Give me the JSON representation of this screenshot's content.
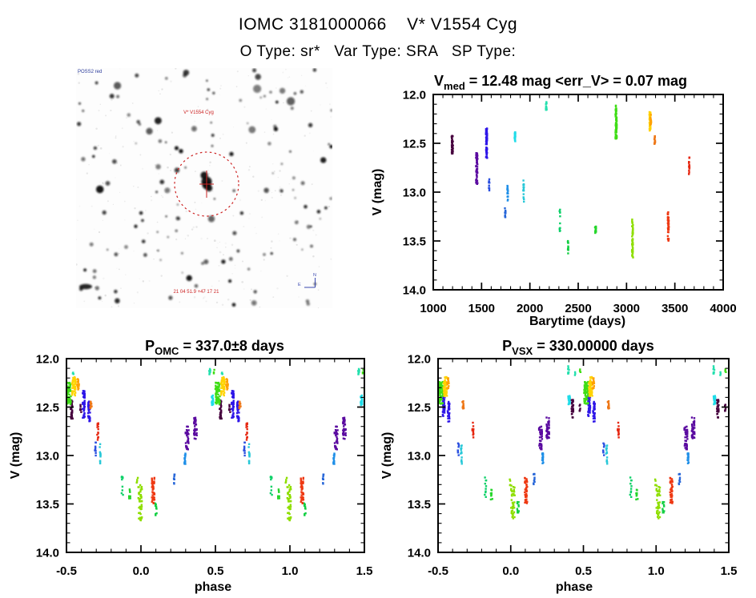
{
  "header": {
    "title": "IOMC 3181000066    V* V1554 Cyg",
    "subtitle": "O Type: sr*   Var Type: SRA   SP Type:"
  },
  "finder_chart": {
    "survey_label": "POSS2 red",
    "target_label": "V* V1554 Cyg",
    "coords_label": "21 04 51.9 +47 17 21",
    "compass": {
      "north": "N",
      "east": "E"
    },
    "marker_color": "#cc2222"
  },
  "palette": {
    "maroon": "#46003e",
    "purple": "#5a0aa0",
    "indigo": "#2e16e8",
    "blue": "#2b50e0",
    "blue2": "#2565d8",
    "lblue": "#1f8fe8",
    "cyan": "#20dce8",
    "cyan2": "#28c8d8",
    "turq": "#25e0ae",
    "teal_green": "#0cd068",
    "green2": "#12cf42",
    "green3": "#25d62b",
    "green": "#3fdd16",
    "ygreen": "#8ede00",
    "yellow": "#ffd300",
    "orange": "#ffa000",
    "orange2": "#ee7717",
    "red": "#ee3913",
    "red2": "#e62711"
  },
  "chart_data": [
    {
      "type": "scatter",
      "id": "barytime",
      "title": "V_med = 12.48 mag <err_V> = 0.07 mag",
      "title_parts": {
        "pre": "V",
        "sub": "med",
        "post": " = 12.48 mag <err_V> = 0.07 mag"
      },
      "xlabel": "Barytime (days)",
      "ylabel": "V (mag)",
      "xlim": [
        1000,
        4000
      ],
      "ylim": [
        12.0,
        14.0
      ],
      "y_axis_inverted_magnitudes": true,
      "grid": false,
      "xticks": [
        1000,
        1500,
        2000,
        2500,
        3000,
        3500,
        4000
      ],
      "xtick_labels": [
        "1000",
        "1500",
        "2000",
        "2500",
        "3000",
        "3500",
        "4000"
      ],
      "yticks": [
        12.0,
        12.5,
        13.0,
        13.5,
        14.0
      ],
      "ytick_labels": [
        "12.0",
        "12.5",
        "13.0",
        "13.5",
        "14.0"
      ],
      "x_minor_step": 100,
      "y_minor_step": 0.1,
      "clusters": [
        {
          "id": "t1197",
          "x": 1197,
          "v": [
            12.42,
            12.61
          ],
          "color": "maroon",
          "n": 38,
          "w": 14
        },
        {
          "id": "t1450",
          "x": 1450,
          "v": [
            12.6,
            12.92
          ],
          "color": "purple",
          "n": 55,
          "w": 16
        },
        {
          "id": "t1552",
          "x": 1552,
          "v": [
            12.33,
            12.65
          ],
          "color": "indigo",
          "n": 65,
          "w": 12
        },
        {
          "id": "t1578",
          "x": 1578,
          "v": [
            12.86,
            13.0
          ],
          "color": "blue",
          "n": 10,
          "w": 8
        },
        {
          "id": "t1745",
          "x": 1745,
          "v": [
            13.15,
            13.27
          ],
          "color": "blue2",
          "n": 9,
          "w": 8
        },
        {
          "id": "t1770",
          "x": 1770,
          "v": [
            12.93,
            13.09
          ],
          "color": "lblue",
          "n": 20,
          "w": 8
        },
        {
          "id": "t1845",
          "x": 1845,
          "v": [
            12.38,
            12.48
          ],
          "color": "cyan",
          "n": 26,
          "w": 10
        },
        {
          "id": "t1935",
          "x": 1935,
          "v": [
            12.86,
            13.1
          ],
          "color": "cyan2",
          "n": 15,
          "w": 7
        },
        {
          "id": "t2170",
          "x": 2170,
          "v": [
            12.07,
            12.17
          ],
          "color": "turq",
          "n": 15,
          "w": 10
        },
        {
          "id": "t2310",
          "x": 2310,
          "v": [
            13.17,
            13.4
          ],
          "color": "teal_green",
          "n": 11,
          "w": 7
        },
        {
          "id": "t2395",
          "x": 2395,
          "v": [
            13.5,
            13.63
          ],
          "color": "green2",
          "n": 11,
          "w": 7
        },
        {
          "id": "t2680",
          "x": 2680,
          "v": [
            13.35,
            13.45
          ],
          "color": "green3",
          "n": 15,
          "w": 12
        },
        {
          "id": "t2892",
          "x": 2892,
          "v": [
            12.14,
            12.46
          ],
          "color": "green",
          "n": 70,
          "w": 14
        },
        {
          "id": "t2892-out",
          "x": 2892,
          "v": [
            12.11,
            12.17
          ],
          "color": "green",
          "n": 4,
          "w": 8
        },
        {
          "id": "t3062",
          "x": 3062,
          "v": [
            13.26,
            13.68
          ],
          "color": "ygreen",
          "n": 46,
          "w": 12
        },
        {
          "id": "t3243",
          "x": 3243,
          "v": [
            12.18,
            12.38
          ],
          "color": "yellow",
          "n": 50,
          "w": 12
        },
        {
          "id": "t3250",
          "x": 3250,
          "v": [
            12.2,
            12.31
          ],
          "color": "orange",
          "n": 16,
          "w": 8
        },
        {
          "id": "t3292",
          "x": 3292,
          "v": [
            12.42,
            12.51
          ],
          "color": "orange2",
          "n": 16,
          "w": 7
        },
        {
          "id": "t3432",
          "x": 3432,
          "v": [
            13.2,
            13.5
          ],
          "color": "red",
          "n": 46,
          "w": 10
        },
        {
          "id": "t3648",
          "x": 3648,
          "v": [
            12.64,
            12.83
          ],
          "color": "red2",
          "n": 16,
          "w": 7
        }
      ]
    },
    {
      "type": "scatter",
      "id": "phase-omc",
      "phase_folded": true,
      "period": "337.0±8 days",
      "title": "P_OMC = 337.0±8 days",
      "title_parts": {
        "pre": "P",
        "sub": "OMC",
        "post": " = 337.0±8 days"
      },
      "xlabel": "phase",
      "ylabel": "V (mag)",
      "xlim": [
        -0.5,
        1.5
      ],
      "ylim": [
        12.0,
        14.0
      ],
      "y_axis_inverted_magnitudes": true,
      "grid": false,
      "xticks": [
        -0.5,
        0.0,
        0.5,
        1.0,
        1.5
      ],
      "xtick_labels": [
        "-0.5",
        "0.0",
        "0.5",
        "1.0",
        "1.5"
      ],
      "yticks": [
        12.0,
        12.5,
        13.0,
        13.5,
        14.0
      ],
      "ytick_labels": [
        "12.0",
        "12.5",
        "13.0",
        "13.5",
        "14.0"
      ],
      "x_minor_step": 0.1,
      "y_minor_step": 0.1,
      "clusters": [
        {
          "id": "maroon-line",
          "x": 0.535,
          "v": [
            12.42,
            12.62
          ],
          "color": "maroon",
          "n": 30,
          "w": 0.013
        },
        {
          "id": "maroon-dash",
          "x": 0.595,
          "v": [
            12.47,
            12.56
          ],
          "color": "maroon",
          "n": 6,
          "w": 0.008
        },
        {
          "id": "purple-a",
          "x": 0.31,
          "v": [
            12.7,
            12.94
          ],
          "color": "purple",
          "n": 42,
          "w": 0.022
        },
        {
          "id": "purple-b",
          "x": 0.365,
          "v": [
            12.6,
            12.83
          ],
          "color": "purple",
          "n": 36,
          "w": 0.02
        },
        {
          "id": "indigo-a",
          "x": 0.615,
          "v": [
            12.33,
            12.61
          ],
          "color": "indigo",
          "n": 45,
          "w": 0.016
        },
        {
          "id": "indigo-b",
          "x": 0.652,
          "v": [
            12.44,
            12.65
          ],
          "color": "indigo",
          "n": 32,
          "w": 0.013
        },
        {
          "id": "blue-sm",
          "x": 0.695,
          "v": [
            12.86,
            13.0
          ],
          "color": "blue",
          "n": 9,
          "w": 0.01
        },
        {
          "id": "blue-dots",
          "x": 0.225,
          "v": [
            13.19,
            13.31
          ],
          "color": "blue2",
          "n": 9,
          "w": 0.01
        },
        {
          "id": "lblue-streak",
          "x": 0.295,
          "v": [
            12.95,
            13.09
          ],
          "color": "lblue",
          "n": 16,
          "w": 0.008
        },
        {
          "id": "cyan-block",
          "x": 0.48,
          "v": [
            12.38,
            12.48
          ],
          "color": "cyan",
          "n": 26,
          "w": 0.013
        },
        {
          "id": "cyan-dots",
          "x": 0.725,
          "v": [
            12.88,
            13.1
          ],
          "color": "cyan2",
          "n": 13,
          "w": 0.008
        },
        {
          "id": "turq-dots",
          "x": 0.462,
          "v": [
            12.07,
            12.17
          ],
          "color": "turq",
          "n": 9,
          "w": 0.008
        },
        {
          "id": "turq-stray",
          "x": 0.545,
          "v": [
            12.13,
            12.18
          ],
          "color": "turq",
          "n": 3,
          "w": 0.006
        },
        {
          "id": "tealgreen-dots",
          "x": 0.875,
          "v": [
            13.21,
            13.44
          ],
          "color": "teal_green",
          "n": 10,
          "w": 0.01
        },
        {
          "id": "green-dots",
          "x": 0.1,
          "v": [
            13.48,
            13.63
          ],
          "color": "green2",
          "n": 10,
          "w": 0.012
        },
        {
          "id": "green-block",
          "x": 0.924,
          "v": [
            13.35,
            13.46
          ],
          "color": "green3",
          "n": 9,
          "w": 0.012
        },
        {
          "id": "green-big",
          "x": 0.515,
          "v": [
            12.24,
            12.47
          ],
          "color": "green",
          "n": 65,
          "w": 0.03
        },
        {
          "id": "green-outlier",
          "x": 0.492,
          "v": [
            12.11,
            12.17
          ],
          "color": "green",
          "n": 3,
          "w": 0.008
        },
        {
          "id": "ygreen-big",
          "x": 0.995,
          "v": [
            13.3,
            13.67
          ],
          "color": "ygreen",
          "n": 42,
          "w": 0.026
        },
        {
          "id": "ygreen-tail",
          "x": 0.975,
          "v": [
            13.22,
            13.32
          ],
          "color": "ygreen",
          "n": 4,
          "w": 0.008
        },
        {
          "id": "yellow-blob",
          "x": 0.55,
          "v": [
            12.19,
            12.39
          ],
          "color": "yellow",
          "n": 48,
          "w": 0.024
        },
        {
          "id": "orange-blob",
          "x": 0.578,
          "v": [
            12.2,
            12.32
          ],
          "color": "orange",
          "n": 16,
          "w": 0.012
        },
        {
          "id": "orange-block",
          "x": 0.665,
          "v": [
            12.43,
            12.52
          ],
          "color": "orange2",
          "n": 13,
          "w": 0.009
        },
        {
          "id": "red-big",
          "x": 0.082,
          "v": [
            13.23,
            13.5
          ],
          "color": "red",
          "n": 42,
          "w": 0.018
        },
        {
          "id": "red-thin",
          "x": 0.71,
          "v": [
            12.66,
            12.84
          ],
          "color": "red2",
          "n": 13,
          "w": 0.008
        }
      ]
    },
    {
      "type": "scatter",
      "id": "phase-vsx",
      "phase_folded": true,
      "period": "330.00000 days",
      "title": "P_VSX = 330.00000 days",
      "title_parts": {
        "pre": "P",
        "sub": "VSX",
        "post": " = 330.00000 days"
      },
      "xlabel": "phase",
      "ylabel": "V (mag)",
      "xlim": [
        -0.5,
        1.5
      ],
      "ylim": [
        12.0,
        14.0
      ],
      "y_axis_inverted_magnitudes": true,
      "grid": false,
      "xticks": [
        -0.5,
        0.0,
        0.5,
        1.0,
        1.5
      ],
      "xtick_labels": [
        "-0.5",
        "0.0",
        "0.5",
        "1.0",
        "1.5"
      ],
      "yticks": [
        12.0,
        12.5,
        13.0,
        13.5,
        14.0
      ],
      "ytick_labels": [
        "12.0",
        "12.5",
        "13.0",
        "13.5",
        "14.0"
      ],
      "x_minor_step": 0.1,
      "y_minor_step": 0.1,
      "clusters": [
        {
          "id": "maroon-line",
          "x": 0.425,
          "v": [
            12.42,
            12.62
          ],
          "color": "maroon",
          "n": 30,
          "w": 0.013
        },
        {
          "id": "maroon-dash",
          "x": 0.475,
          "v": [
            12.47,
            12.56
          ],
          "color": "maroon",
          "n": 6,
          "w": 0.008
        },
        {
          "id": "purple-a",
          "x": 0.205,
          "v": [
            12.7,
            12.94
          ],
          "color": "purple",
          "n": 42,
          "w": 0.022
        },
        {
          "id": "purple-b",
          "x": 0.255,
          "v": [
            12.6,
            12.83
          ],
          "color": "purple",
          "n": 36,
          "w": 0.02
        },
        {
          "id": "indigo-a",
          "x": 0.54,
          "v": [
            12.33,
            12.61
          ],
          "color": "indigo",
          "n": 45,
          "w": 0.016
        },
        {
          "id": "indigo-b",
          "x": 0.572,
          "v": [
            12.44,
            12.65
          ],
          "color": "indigo",
          "n": 32,
          "w": 0.013
        },
        {
          "id": "blue-sm",
          "x": 0.64,
          "v": [
            12.86,
            13.0
          ],
          "color": "blue",
          "n": 9,
          "w": 0.01
        },
        {
          "id": "blue-dots",
          "x": 0.16,
          "v": [
            13.19,
            13.31
          ],
          "color": "blue2",
          "n": 9,
          "w": 0.01
        },
        {
          "id": "lblue-streak",
          "x": 0.22,
          "v": [
            12.95,
            13.09
          ],
          "color": "lblue",
          "n": 16,
          "w": 0.008
        },
        {
          "id": "cyan-block",
          "x": 0.402,
          "v": [
            12.38,
            12.48
          ],
          "color": "cyan",
          "n": 26,
          "w": 0.013
        },
        {
          "id": "cyan-dots",
          "x": 0.66,
          "v": [
            12.88,
            13.1
          ],
          "color": "cyan2",
          "n": 13,
          "w": 0.008
        },
        {
          "id": "turq-dots",
          "x": 0.398,
          "v": [
            12.07,
            12.17
          ],
          "color": "turq",
          "n": 9,
          "w": 0.008
        },
        {
          "id": "turq-stray",
          "x": 0.443,
          "v": [
            12.13,
            12.18
          ],
          "color": "turq",
          "n": 3,
          "w": 0.006
        },
        {
          "id": "tealgreen-dots",
          "x": 0.826,
          "v": [
            13.21,
            13.44
          ],
          "color": "teal_green",
          "n": 10,
          "w": 0.01
        },
        {
          "id": "green-dots",
          "x": 0.05,
          "v": [
            13.48,
            13.63
          ],
          "color": "green2",
          "n": 10,
          "w": 0.012
        },
        {
          "id": "green-block",
          "x": 0.868,
          "v": [
            13.35,
            13.46
          ],
          "color": "green3",
          "n": 9,
          "w": 0.012
        },
        {
          "id": "green-big",
          "x": 0.52,
          "v": [
            12.24,
            12.47
          ],
          "color": "green",
          "n": 65,
          "w": 0.03
        },
        {
          "id": "green-outlier",
          "x": 0.478,
          "v": [
            12.11,
            12.17
          ],
          "color": "green",
          "n": 3,
          "w": 0.008
        },
        {
          "id": "ygreen-big",
          "x": 0.015,
          "v": [
            13.3,
            13.67
          ],
          "color": "ygreen",
          "n": 42,
          "w": 0.026
        },
        {
          "id": "ygreen-tail",
          "x": 0.995,
          "v": [
            13.22,
            13.32
          ],
          "color": "ygreen",
          "n": 4,
          "w": 0.008
        },
        {
          "id": "yellow-blob",
          "x": 0.55,
          "v": [
            12.19,
            12.39
          ],
          "color": "yellow",
          "n": 48,
          "w": 0.024
        },
        {
          "id": "orange-blob",
          "x": 0.568,
          "v": [
            12.2,
            12.32
          ],
          "color": "orange",
          "n": 16,
          "w": 0.012
        },
        {
          "id": "orange-block",
          "x": 0.672,
          "v": [
            12.43,
            12.52
          ],
          "color": "orange2",
          "n": 13,
          "w": 0.009
        },
        {
          "id": "red-big",
          "x": 0.105,
          "v": [
            13.23,
            13.5
          ],
          "color": "red",
          "n": 42,
          "w": 0.018
        },
        {
          "id": "red-thin",
          "x": 0.74,
          "v": [
            12.66,
            12.84
          ],
          "color": "red2",
          "n": 13,
          "w": 0.008
        }
      ]
    }
  ]
}
